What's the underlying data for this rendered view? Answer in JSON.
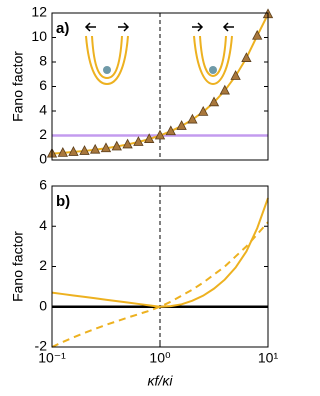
{
  "chart_data": [
    {
      "type": "line",
      "panel_label": "a)",
      "y_label": "Fano factor",
      "xlim": [
        0.1,
        10
      ],
      "log_x": true,
      "ylim": [
        0,
        12
      ],
      "yticks": [
        0,
        2,
        4,
        6,
        8,
        10,
        12
      ],
      "reference_line": {
        "value": 2,
        "color": "#c39bef"
      },
      "vline": 1,
      "x": [
        0.1,
        0.126,
        0.158,
        0.2,
        0.251,
        0.316,
        0.398,
        0.501,
        0.631,
        0.794,
        1,
        1.259,
        1.585,
        1.995,
        2.512,
        3.162,
        3.981,
        5.012,
        6.31,
        7.943,
        10
      ],
      "series": [
        {
          "color": "#edb120",
          "marker": "triangle",
          "marker_color": "#a8773c",
          "dashed": false,
          "values": [
            0.52,
            0.58,
            0.66,
            0.74,
            0.84,
            0.96,
            1.1,
            1.27,
            1.47,
            1.71,
            2,
            2.35,
            2.78,
            3.3,
            3.93,
            4.71,
            5.67,
            6.86,
            8.32,
            10.14,
            11.9
          ]
        }
      ]
    },
    {
      "type": "line",
      "panel_label": "b)",
      "y_label": "Fano factor",
      "x_label": "κf/κi",
      "xlim": [
        0.1,
        10
      ],
      "log_x": true,
      "xticks": [
        {
          "value": 0.1,
          "label": "10⁻¹"
        },
        {
          "value": 1,
          "label": "10⁰"
        },
        {
          "value": 10,
          "label": "10¹"
        }
      ],
      "ylim": [
        -2,
        6
      ],
      "yticks": [
        -2,
        0,
        2,
        4,
        6
      ],
      "reference_line": {
        "value": 0,
        "color": "#000000"
      },
      "vline": 1,
      "x": [
        0.1,
        0.126,
        0.158,
        0.2,
        0.251,
        0.316,
        0.398,
        0.501,
        0.631,
        0.794,
        1,
        1.259,
        1.585,
        1.995,
        2.512,
        3.162,
        3.981,
        5.012,
        6.31,
        7.943,
        10
      ],
      "series": [
        {
          "color": "#edb120",
          "dashed": false,
          "values": [
            0.7,
            0.63,
            0.56,
            0.49,
            0.42,
            0.35,
            0.28,
            0.21,
            0.14,
            0.07,
            0,
            0.03,
            0.12,
            0.3,
            0.55,
            0.9,
            1.35,
            1.95,
            2.75,
            3.9,
            5.4
          ]
        },
        {
          "color": "#edb120",
          "dashed": true,
          "values": [
            -2,
            -1.75,
            -1.52,
            -1.3,
            -1.1,
            -0.9,
            -0.72,
            -0.54,
            -0.37,
            -0.2,
            0,
            0.25,
            0.55,
            0.85,
            1.2,
            1.6,
            2,
            2.5,
            3,
            3.6,
            4.2
          ]
        }
      ]
    }
  ]
}
